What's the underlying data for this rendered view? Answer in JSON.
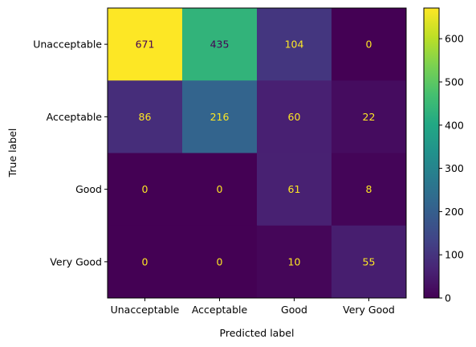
{
  "chart_data": {
    "type": "heatmap",
    "title": "",
    "xlabel": "Predicted label",
    "ylabel": "True label",
    "x_categories": [
      "Unacceptable",
      "Acceptable",
      "Good",
      "Very Good"
    ],
    "y_categories": [
      "Unacceptable",
      "Acceptable",
      "Good",
      "Very Good"
    ],
    "values": [
      [
        671,
        435,
        104,
        0
      ],
      [
        86,
        216,
        60,
        22
      ],
      [
        0,
        0,
        61,
        8
      ],
      [
        0,
        0,
        10,
        55
      ]
    ],
    "colormap": "viridis",
    "color_range": [
      0,
      671
    ],
    "colorbar_ticks": [
      0,
      100,
      200,
      300,
      400,
      500,
      600
    ],
    "text_color_light": "#fde725",
    "text_color_dark": "#440154"
  }
}
